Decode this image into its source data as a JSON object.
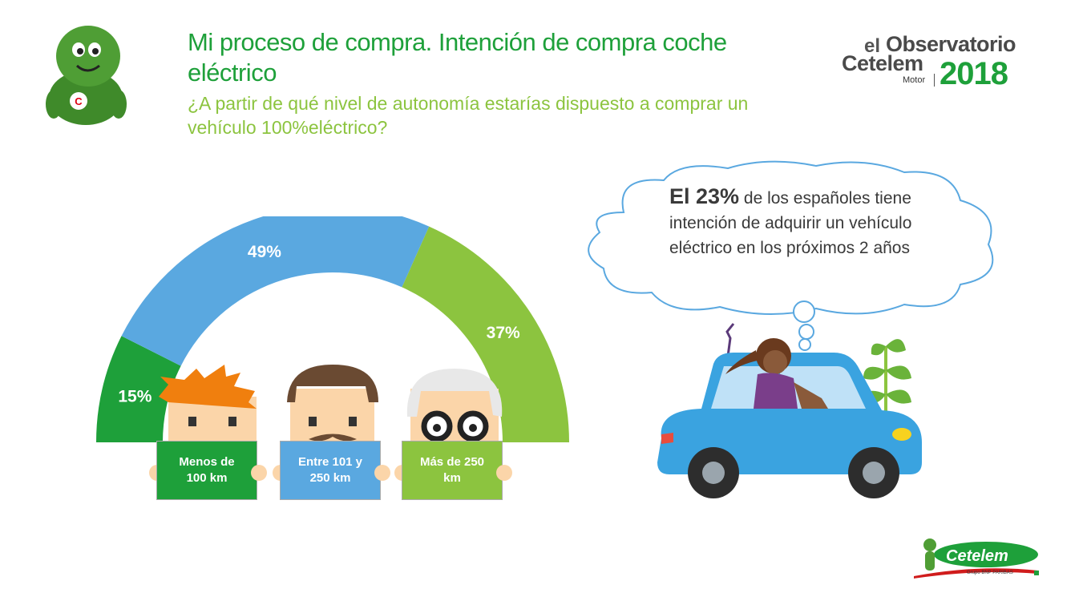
{
  "header": {
    "title": "Mi proceso de compra. Intención de compra coche eléctrico",
    "subtitle": "¿A partir de qué nivel de autonomía estarías dispuesto a comprar un vehículo 100%eléctrico?"
  },
  "logo": {
    "prefix": "el",
    "name": "Observatorio",
    "brand": "Cetelem",
    "section": "Motor",
    "year": "2018"
  },
  "chart_data": {
    "type": "pie",
    "shape": "semicircle-gauge",
    "categories": [
      "Menos de 100 km",
      "Entre 101 y 250 km",
      "Más de 250 km"
    ],
    "values": [
      15,
      49,
      37
    ],
    "value_labels": [
      "15%",
      "49%",
      "37%"
    ],
    "colors": [
      "#1ea03a",
      "#5aa8e0",
      "#8cc43f"
    ]
  },
  "signs": [
    {
      "label": "Menos de 100 km",
      "color": "#1ea03a"
    },
    {
      "label": "Entre 101 y 250 km",
      "color": "#5aa8e0"
    },
    {
      "label": "Más de 250 km",
      "color": "#8cc43f"
    }
  ],
  "callout": {
    "highlight": "El 23%",
    "text": " de los españoles tiene intención de adquirir un vehículo eléctrico en los próximos 2 años"
  },
  "footer": {
    "brand": "Cetelem",
    "group": "Grupo BNP PARIBAS"
  },
  "colors": {
    "green": "#1ea03a",
    "blue": "#5aa8e0",
    "light_green": "#8cc43f"
  }
}
